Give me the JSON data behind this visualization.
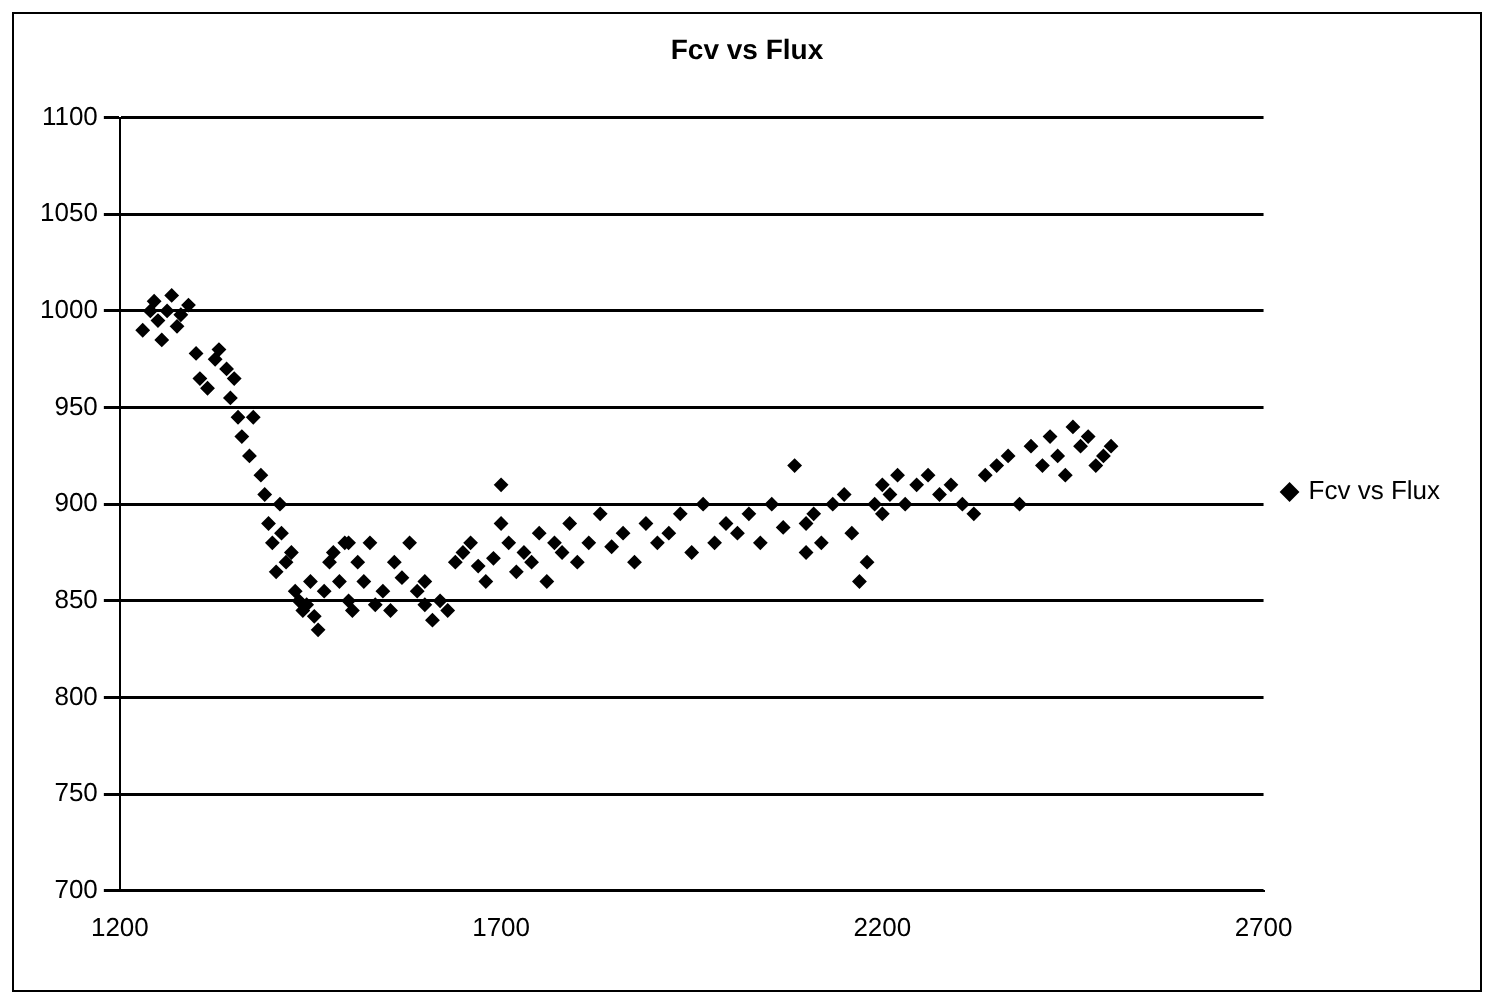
{
  "chart_data": {
    "type": "scatter",
    "title": "Fcv vs Flux",
    "xlim": [
      1200,
      2700
    ],
    "xticks": [
      1200,
      1700,
      2200,
      2700
    ],
    "ylim": [
      700,
      1100
    ],
    "yticks": [
      700,
      750,
      800,
      850,
      900,
      950,
      1000,
      1050,
      1100
    ],
    "grid": "y",
    "legend": "right",
    "marker": "diamond",
    "series": [
      {
        "name": "Fcv vs Flux",
        "color": "#000000",
        "x": [
          1230,
          1240,
          1245,
          1250,
          1255,
          1262,
          1268,
          1275,
          1280,
          1290,
          1300,
          1305,
          1315,
          1325,
          1330,
          1340,
          1345,
          1350,
          1355,
          1360,
          1370,
          1375,
          1385,
          1390,
          1395,
          1400,
          1405,
          1410,
          1412,
          1418,
          1425,
          1430,
          1435,
          1440,
          1445,
          1450,
          1455,
          1460,
          1468,
          1475,
          1480,
          1488,
          1495,
          1500,
          1505,
          1512,
          1520,
          1528,
          1535,
          1545,
          1555,
          1560,
          1570,
          1580,
          1590,
          1600,
          1610,
          1620,
          1630,
          1640,
          1650,
          1660,
          1670,
          1680,
          1690,
          1700,
          1710,
          1720,
          1730,
          1740,
          1750,
          1760,
          1770,
          1780,
          1790,
          1800,
          1815,
          1830,
          1845,
          1860,
          1875,
          1890,
          1905,
          1920,
          1935,
          1950,
          1965,
          1980,
          1995,
          2010,
          2025,
          2040,
          2055,
          2070,
          2085,
          2100,
          2110,
          2120,
          2135,
          2150,
          2160,
          2170,
          2180,
          2190,
          2200,
          2210,
          2220,
          2230,
          2245,
          2260,
          2275,
          2290,
          2305,
          2320,
          2335,
          2350,
          2365,
          2380,
          2395,
          2410,
          2420,
          2430,
          2440,
          2450,
          2460,
          2470,
          2480,
          2490,
          2500,
          1500,
          1600,
          1700,
          2100,
          2200
        ],
        "values": [
          990,
          1000,
          1005,
          995,
          985,
          1000,
          1008,
          992,
          998,
          1003,
          978,
          965,
          960,
          975,
          980,
          970,
          955,
          965,
          945,
          935,
          925,
          945,
          915,
          905,
          890,
          880,
          865,
          900,
          885,
          870,
          875,
          855,
          850,
          845,
          848,
          860,
          842,
          835,
          855,
          870,
          875,
          860,
          880,
          850,
          845,
          870,
          860,
          880,
          848,
          855,
          845,
          870,
          862,
          880,
          855,
          848,
          840,
          850,
          845,
          870,
          875,
          880,
          868,
          860,
          872,
          910,
          880,
          865,
          875,
          870,
          885,
          860,
          880,
          875,
          890,
          870,
          880,
          895,
          878,
          885,
          870,
          890,
          880,
          885,
          895,
          875,
          900,
          880,
          890,
          885,
          895,
          880,
          900,
          888,
          920,
          890,
          895,
          880,
          900,
          905,
          885,
          860,
          870,
          900,
          910,
          905,
          915,
          900,
          910,
          915,
          905,
          910,
          900,
          895,
          915,
          920,
          925,
          900,
          930,
          920,
          935,
          925,
          915,
          940,
          930,
          935,
          920,
          925,
          930,
          880,
          860,
          890,
          875,
          895
        ]
      }
    ]
  }
}
